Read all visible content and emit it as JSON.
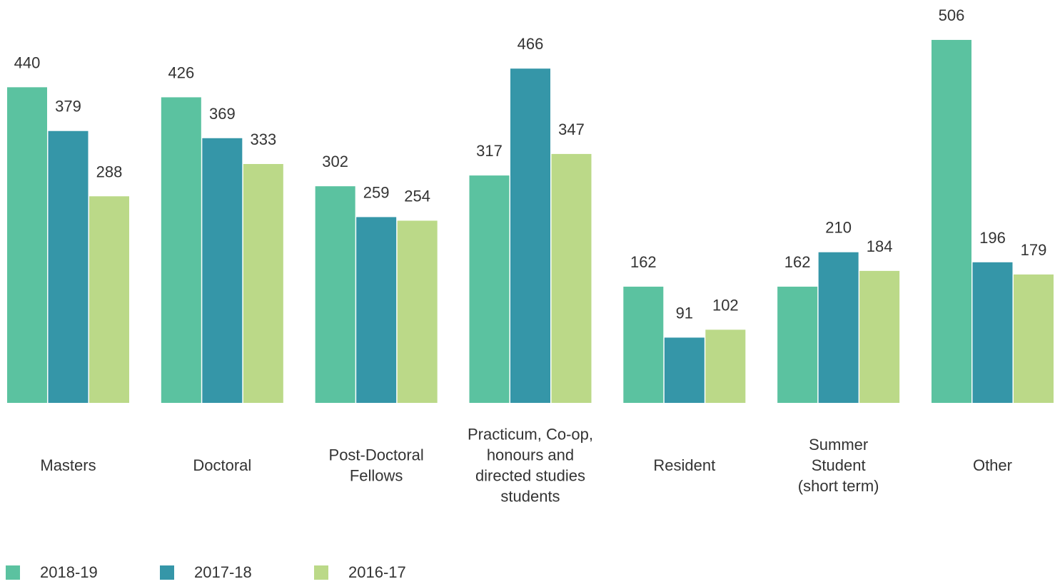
{
  "chart_data": {
    "type": "bar",
    "categories": [
      [
        "Masters"
      ],
      [
        "Doctoral"
      ],
      [
        "Post-Doctoral",
        "Fellows"
      ],
      [
        "Practicum, Co-op,",
        "honours and",
        "directed studies",
        "students"
      ],
      [
        "Resident"
      ],
      [
        "Summer",
        "Student",
        "(short term)"
      ],
      [
        "Other"
      ]
    ],
    "series": [
      {
        "name": "2018-19",
        "color": "#5bc2a0",
        "values": [
          440,
          426,
          302,
          317,
          162,
          162,
          506
        ]
      },
      {
        "name": "2017-18",
        "color": "#3596a8",
        "values": [
          379,
          369,
          259,
          466,
          91,
          210,
          196
        ]
      },
      {
        "name": "2016-17",
        "color": "#bbd988",
        "values": [
          288,
          333,
          254,
          347,
          102,
          184,
          179
        ]
      }
    ],
    "ylim": [
      0,
      550
    ],
    "grid": false,
    "legend_position": "bottom-left"
  }
}
